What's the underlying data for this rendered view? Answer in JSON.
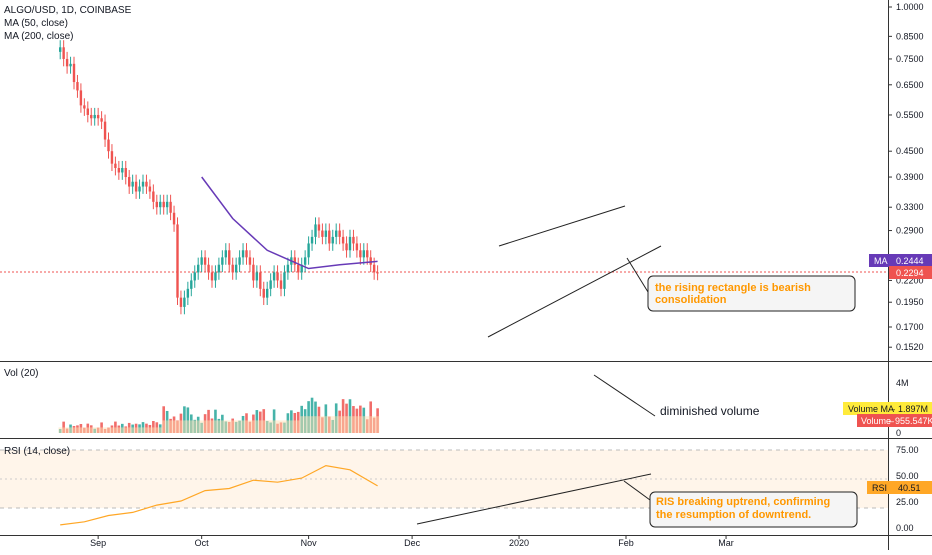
{
  "symbol_title": "ALGO/USD, 1D, COINBASE",
  "indicators": {
    "ma50": "MA (50, close)",
    "ma200": "MA (200, close)"
  },
  "colors": {
    "up": "#26a69a",
    "down": "#ef5350",
    "ma": "#673ab7",
    "rsi": "#ffa726",
    "annotation": "#ff9800",
    "volma_badge": "#ffeb3b"
  },
  "price_pane": {
    "y_ticks": [
      "1.0000",
      "0.8500",
      "0.7500",
      "0.6500",
      "0.5500",
      "0.4500",
      "0.3900",
      "0.3300",
      "0.2900",
      "0.2500",
      "0.2200",
      "0.1950",
      "0.1700",
      "0.1520"
    ],
    "ma_label": "MA",
    "ma_value": "0.2444",
    "last_price": "0.2294",
    "annotation": [
      "the rising rectangle is bearish",
      "consolidation"
    ]
  },
  "volume_pane": {
    "title": "Vol (20)",
    "y_ticks": [
      "4M",
      "2M",
      "0"
    ],
    "volma_label": "Volume MA",
    "volma_value": "1.897M",
    "vol_label": "Volume",
    "vol_value": "955.547K",
    "annotation": "diminished volume"
  },
  "rsi_pane": {
    "title": "RSI (14, close)",
    "y_ticks": [
      "75.00",
      "50.00",
      "25.00",
      "0.00"
    ],
    "label": "RSI",
    "value": "40.51",
    "annotation": [
      "RIS breaking uptrend, confirming",
      "the resumption of downtrend."
    ]
  },
  "x_axis": {
    "labels": [
      "Sep",
      "Oct",
      "Nov",
      "Dec",
      "2020",
      "Feb",
      "Mar"
    ]
  },
  "chart_data": [
    {
      "type": "candlestick",
      "title": "ALGO/USD, 1D, COINBASE",
      "y_scale": "log",
      "ylim": [
        0.14,
        1.05
      ],
      "x_range": [
        "2019-08-05",
        "2020-03-10"
      ],
      "series": [
        {
          "name": "ALGO/USD",
          "x": [
            "2019-08-21",
            "2019-08-22",
            "2019-08-23",
            "2019-08-24",
            "2019-08-25",
            "2019-08-26",
            "2019-08-27",
            "2019-08-28",
            "2019-08-29",
            "2019-08-30",
            "2019-08-31",
            "2019-09-01",
            "2019-09-02",
            "2019-09-03",
            "2019-09-04",
            "2019-09-05",
            "2019-09-06",
            "2019-09-07",
            "2019-09-08",
            "2019-09-09",
            "2019-09-10",
            "2019-09-11",
            "2019-09-12",
            "2019-09-13",
            "2019-09-14",
            "2019-09-15",
            "2019-09-16",
            "2019-09-17",
            "2019-09-18",
            "2019-09-19",
            "2019-09-20",
            "2019-09-21",
            "2019-09-22",
            "2019-09-23",
            "2019-09-24",
            "2019-09-25",
            "2019-09-26",
            "2019-09-27",
            "2019-09-28",
            "2019-09-29",
            "2019-09-30",
            "2019-10-01",
            "2019-10-02",
            "2019-10-03",
            "2019-10-04",
            "2019-10-05",
            "2019-10-06",
            "2019-10-07",
            "2019-10-08",
            "2019-10-09",
            "2019-10-10",
            "2019-10-11",
            "2019-10-12",
            "2019-10-13",
            "2019-10-14",
            "2019-10-15",
            "2019-10-16",
            "2019-10-17",
            "2019-10-18",
            "2019-10-19",
            "2019-10-20",
            "2019-10-21",
            "2019-10-22",
            "2019-10-23",
            "2019-10-24",
            "2019-10-25",
            "2019-10-26",
            "2019-10-27",
            "2019-10-28",
            "2019-10-29",
            "2019-10-30",
            "2019-10-31",
            "2019-11-01",
            "2019-11-02",
            "2019-11-03",
            "2019-11-04",
            "2019-11-05",
            "2019-11-06",
            "2019-11-07",
            "2019-11-08",
            "2019-11-09",
            "2019-11-10",
            "2019-11-11",
            "2019-11-12",
            "2019-11-13",
            "2019-11-14",
            "2019-11-15",
            "2019-11-16",
            "2019-11-17",
            "2019-11-18",
            "2019-11-19",
            "2019-11-20",
            "2019-11-21"
          ],
          "open": [
            0.78,
            0.8,
            0.75,
            0.72,
            0.73,
            0.66,
            0.63,
            0.58,
            0.57,
            0.55,
            0.54,
            0.55,
            0.54,
            0.53,
            0.48,
            0.45,
            0.42,
            0.41,
            0.4,
            0.41,
            0.39,
            0.37,
            0.38,
            0.36,
            0.37,
            0.38,
            0.37,
            0.36,
            0.34,
            0.33,
            0.34,
            0.33,
            0.34,
            0.32,
            0.3,
            0.2,
            0.19,
            0.2,
            0.21,
            0.22,
            0.23,
            0.24,
            0.25,
            0.24,
            0.23,
            0.22,
            0.23,
            0.24,
            0.25,
            0.26,
            0.24,
            0.23,
            0.24,
            0.25,
            0.26,
            0.25,
            0.24,
            0.22,
            0.23,
            0.21,
            0.2,
            0.21,
            0.22,
            0.23,
            0.22,
            0.21,
            0.23,
            0.24,
            0.25,
            0.24,
            0.23,
            0.24,
            0.25,
            0.27,
            0.28,
            0.3,
            0.29,
            0.28,
            0.29,
            0.27,
            0.28,
            0.29,
            0.28,
            0.27,
            0.26,
            0.28,
            0.27,
            0.26,
            0.25,
            0.26,
            0.25,
            0.24,
            0.23
          ],
          "close": [
            0.8,
            0.75,
            0.72,
            0.73,
            0.66,
            0.63,
            0.58,
            0.57,
            0.55,
            0.54,
            0.55,
            0.54,
            0.53,
            0.48,
            0.45,
            0.42,
            0.41,
            0.4,
            0.41,
            0.39,
            0.37,
            0.38,
            0.36,
            0.37,
            0.38,
            0.37,
            0.36,
            0.34,
            0.33,
            0.34,
            0.33,
            0.34,
            0.32,
            0.3,
            0.2,
            0.19,
            0.2,
            0.21,
            0.22,
            0.23,
            0.24,
            0.25,
            0.24,
            0.23,
            0.22,
            0.23,
            0.24,
            0.25,
            0.26,
            0.24,
            0.23,
            0.24,
            0.25,
            0.26,
            0.25,
            0.24,
            0.22,
            0.23,
            0.21,
            0.2,
            0.21,
            0.22,
            0.23,
            0.22,
            0.21,
            0.23,
            0.24,
            0.25,
            0.24,
            0.23,
            0.24,
            0.25,
            0.27,
            0.28,
            0.3,
            0.29,
            0.28,
            0.29,
            0.27,
            0.28,
            0.29,
            0.28,
            0.27,
            0.26,
            0.28,
            0.27,
            0.26,
            0.25,
            0.26,
            0.25,
            0.24,
            0.23,
            0.2294
          ]
        },
        {
          "name": "MA (50, close)",
          "x": [
            "2019-10-01",
            "2019-10-10",
            "2019-10-20",
            "2019-11-01",
            "2019-11-10",
            "2019-11-21"
          ],
          "values": [
            0.39,
            0.31,
            0.26,
            0.235,
            0.24,
            0.2444
          ]
        }
      ]
    },
    {
      "type": "bar",
      "title": "Vol (20)",
      "ylim": [
        0,
        5000000
      ],
      "series": [
        {
          "name": "Volume",
          "last": 955547
        },
        {
          "name": "Volume MA",
          "last": 1897000
        }
      ]
    },
    {
      "type": "line",
      "title": "RSI (14, close)",
      "ylim": [
        0,
        100
      ],
      "x": [
        "2019-08-21",
        "2019-08-28",
        "2019-09-04",
        "2019-09-11",
        "2019-09-18",
        "2019-09-25",
        "2019-10-02",
        "2019-10-09",
        "2019-10-16",
        "2019-10-23",
        "2019-10-30",
        "2019-11-06",
        "2019-11-13",
        "2019-11-21"
      ],
      "series": [
        {
          "name": "RSI (14, close)",
          "values": [
            3,
            6,
            12,
            15,
            22,
            26,
            36,
            38,
            46,
            44,
            48,
            60,
            56,
            40.51
          ]
        }
      ]
    }
  ]
}
